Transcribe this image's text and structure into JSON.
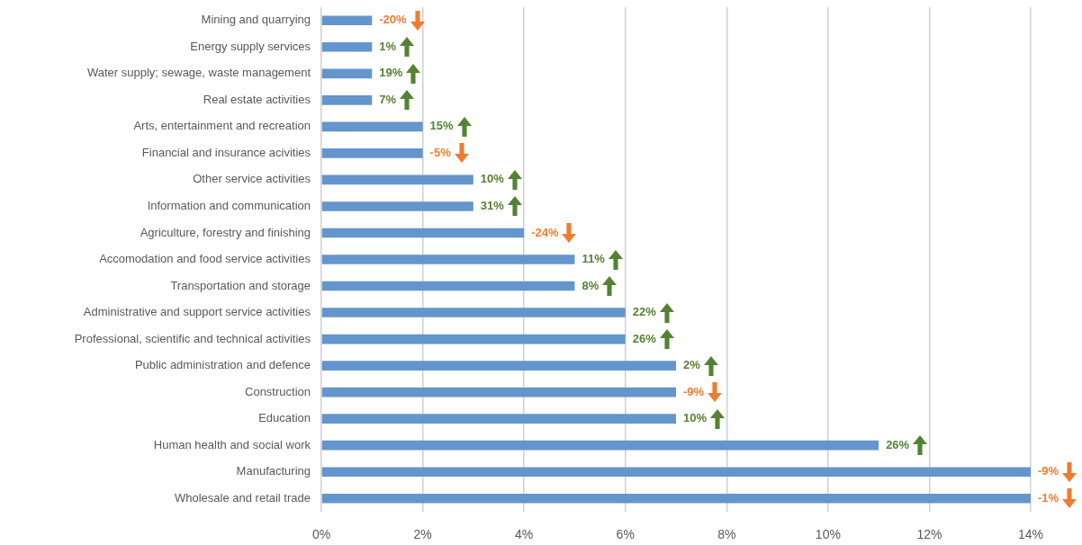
{
  "chart_data": {
    "type": "bar",
    "orientation": "horizontal",
    "categories": [
      "Mining and quarrying",
      "Energy supply services",
      "Water supply; sewage, waste management",
      "Real estate activities",
      "Arts, entertainment and recreation",
      "Financial and insurance acivities",
      "Other service activities",
      "Information and communication",
      "Agriculture, forestry and finishing",
      "Accomodation and food service activities",
      "Transportation and storage",
      "Administrative and support service activities",
      "Professional, scientific and technical activities",
      "Public administration and defence",
      "Construction",
      "Education",
      "Human health and social work",
      "Manufacturing",
      "Wholesale and retail trade"
    ],
    "values": [
      1,
      1,
      1,
      1,
      2,
      2,
      3,
      3,
      4,
      5,
      5,
      6,
      6,
      7,
      7,
      7,
      11,
      14,
      14
    ],
    "annotations": [
      {
        "text": "-20%",
        "x": 1,
        "y": "Mining and quarrying"
      },
      {
        "text": "1%",
        "x": 1,
        "y": "Energy supply services"
      },
      {
        "text": "19%",
        "x": 1,
        "y": "Water supply; sewage, waste management"
      },
      {
        "text": "7%",
        "x": 1,
        "y": "Real estate activities"
      },
      {
        "text": "15%",
        "x": 2,
        "y": "Arts, entertainment and recreation"
      },
      {
        "text": "-5%",
        "x": 2,
        "y": "Financial and insurance acivities"
      },
      {
        "text": "10%",
        "x": 3,
        "y": "Other service activities"
      },
      {
        "text": "31%",
        "x": 3,
        "y": "Information and communication"
      },
      {
        "text": "-24%",
        "x": 4,
        "y": "Agriculture, forestry and finishing"
      },
      {
        "text": "11%",
        "x": 5,
        "y": "Accomodation and food service activities"
      },
      {
        "text": "8%",
        "x": 5,
        "y": "Transportation and storage"
      },
      {
        "text": "22%",
        "x": 6,
        "y": "Administrative and support service activities"
      },
      {
        "text": "26%",
        "x": 6,
        "y": "Professional, scientific and technical activities"
      },
      {
        "text": "2%",
        "x": 7,
        "y": "Public administration and defence"
      },
      {
        "text": "-9%",
        "x": 7,
        "y": "Construction"
      },
      {
        "text": "10%",
        "x": 7,
        "y": "Education"
      },
      {
        "text": "26%",
        "x": 11,
        "y": "Human health and social work"
      },
      {
        "text": "-9%",
        "x": 14,
        "y": "Manufacturing"
      },
      {
        "text": "-1%",
        "x": 14,
        "y": "Wholesale and retail trade"
      }
    ],
    "color": "#6495cd",
    "xlim": [
      0,
      14
    ],
    "xticks": [
      {
        "value": 0,
        "label": "0%"
      },
      {
        "value": 2,
        "label": "2%"
      },
      {
        "value": 4,
        "label": "4%"
      },
      {
        "value": 6,
        "label": "6%"
      },
      {
        "value": 8,
        "label": "8%"
      },
      {
        "value": 10,
        "label": "10%"
      },
      {
        "value": 12,
        "label": "12%"
      },
      {
        "value": 14,
        "label": "14%"
      }
    ],
    "grid": "x"
  }
}
